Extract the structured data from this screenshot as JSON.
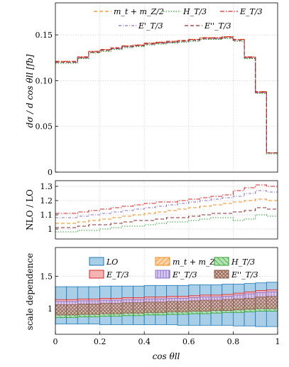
{
  "chart_data": [
    {
      "type": "line",
      "ylabel": "dσ / d cos θll [fb]",
      "ylim": [
        0,
        0.185
      ],
      "yticks": [
        "0",
        "0.05",
        "0.10",
        "0.15"
      ],
      "ytick_values": [
        0,
        0.05,
        0.1,
        0.15
      ],
      "grid": true,
      "legend_position": "top-right",
      "bin_edges": [
        0,
        0.05,
        0.1,
        0.15,
        0.2,
        0.25,
        0.3,
        0.35,
        0.4,
        0.45,
        0.5,
        0.55,
        0.6,
        0.65,
        0.7,
        0.75,
        0.8,
        0.85,
        0.9,
        0.95,
        1.0
      ],
      "series": [
        {
          "name": "m_t + m_Z/2",
          "color": "#ee8a1c",
          "dash": "5,3",
          "values": [
            0.121,
            0.121,
            0.126,
            0.132,
            0.134,
            0.136,
            0.138,
            0.139,
            0.141,
            0.142,
            0.143,
            0.144,
            0.145,
            0.147,
            0.147,
            0.148,
            0.145,
            0.126,
            0.088,
            0.021
          ]
        },
        {
          "name": "H_T/3",
          "color": "#2ca02c",
          "dash": "1.5,2",
          "values": [
            0.119,
            0.119,
            0.124,
            0.13,
            0.132,
            0.134,
            0.136,
            0.137,
            0.139,
            0.14,
            0.141,
            0.142,
            0.143,
            0.145,
            0.145,
            0.146,
            0.143,
            0.124,
            0.086,
            0.02
          ]
        },
        {
          "name": "E_T/3",
          "color": "#d62728",
          "dash": "6,2,1.5,2",
          "values": [
            0.121,
            0.121,
            0.126,
            0.132,
            0.134,
            0.136,
            0.138,
            0.139,
            0.141,
            0.142,
            0.143,
            0.144,
            0.145,
            0.147,
            0.147,
            0.148,
            0.145,
            0.126,
            0.088,
            0.021
          ]
        },
        {
          "name": "E'_T/3",
          "color": "#8a6fc9",
          "dash": "4,2,1,2",
          "values": [
            0.12,
            0.12,
            0.125,
            0.131,
            0.133,
            0.135,
            0.137,
            0.138,
            0.14,
            0.141,
            0.142,
            0.143,
            0.144,
            0.146,
            0.146,
            0.147,
            0.144,
            0.125,
            0.087,
            0.021
          ]
        },
        {
          "name": "E''_T/3",
          "color": "#8c2d2d",
          "dash": "5,3",
          "values": [
            0.12,
            0.12,
            0.125,
            0.131,
            0.133,
            0.135,
            0.137,
            0.138,
            0.14,
            0.141,
            0.142,
            0.143,
            0.144,
            0.146,
            0.146,
            0.147,
            0.144,
            0.125,
            0.087,
            0.021
          ]
        }
      ]
    },
    {
      "type": "line",
      "ylabel": "NLO / LO",
      "ylim": [
        0.93,
        1.34
      ],
      "yticks": [
        "1",
        "1.1",
        "1.2",
        "1.3"
      ],
      "ytick_values": [
        1,
        1.1,
        1.2,
        1.3
      ],
      "grid": true,
      "bin_edges": [
        0,
        0.05,
        0.1,
        0.15,
        0.2,
        0.25,
        0.3,
        0.35,
        0.4,
        0.45,
        0.5,
        0.55,
        0.6,
        0.65,
        0.7,
        0.75,
        0.8,
        0.85,
        0.9,
        0.95,
        1.0
      ],
      "series": [
        {
          "name": "m_t + m_Z/2",
          "color": "#ee8a1c",
          "dash": "5,3",
          "values": [
            1.04,
            1.04,
            1.05,
            1.06,
            1.07,
            1.08,
            1.09,
            1.1,
            1.11,
            1.12,
            1.13,
            1.14,
            1.15,
            1.16,
            1.17,
            1.18,
            1.19,
            1.2,
            1.21,
            1.2
          ]
        },
        {
          "name": "H_T/3",
          "color": "#2ca02c",
          "dash": "1.5,2",
          "values": [
            0.98,
            0.98,
            0.99,
            0.99,
            1.0,
            1.01,
            1.02,
            1.02,
            1.03,
            1.04,
            1.05,
            1.05,
            1.06,
            1.07,
            1.08,
            1.08,
            1.06,
            1.07,
            1.1,
            1.09
          ]
        },
        {
          "name": "E_T/3",
          "color": "#d62728",
          "dash": "6,2,1.5,2",
          "values": [
            1.11,
            1.11,
            1.12,
            1.13,
            1.14,
            1.15,
            1.16,
            1.17,
            1.18,
            1.19,
            1.19,
            1.2,
            1.21,
            1.22,
            1.23,
            1.24,
            1.27,
            1.29,
            1.31,
            1.3
          ]
        },
        {
          "name": "E'_T/3",
          "color": "#8a6fc9",
          "dash": "4,2,1,2",
          "values": [
            1.08,
            1.08,
            1.09,
            1.1,
            1.11,
            1.12,
            1.13,
            1.14,
            1.15,
            1.16,
            1.17,
            1.18,
            1.19,
            1.2,
            1.21,
            1.22,
            1.23,
            1.25,
            1.27,
            1.26
          ]
        },
        {
          "name": "E''_T/3",
          "color": "#8c2d2d",
          "dash": "5,3",
          "values": [
            1.01,
            1.01,
            1.02,
            1.03,
            1.03,
            1.04,
            1.05,
            1.06,
            1.06,
            1.07,
            1.08,
            1.08,
            1.09,
            1.1,
            1.11,
            1.11,
            1.12,
            1.13,
            1.15,
            1.14
          ]
        }
      ]
    },
    {
      "type": "bar",
      "ylabel": "scale dependence",
      "xlabel": "cos θll",
      "ylim": [
        0.6,
        1.95
      ],
      "yticks": [
        "1",
        "1.5"
      ],
      "ytick_values": [
        1,
        1.5
      ],
      "xticks": [
        "0",
        "0.2",
        "0.4",
        "0.6",
        "0.8",
        "1"
      ],
      "xtick_values": [
        0,
        0.2,
        0.4,
        0.6,
        0.8,
        1
      ],
      "grid": true,
      "legend_position": "top-right",
      "bin_edges": [
        0,
        0.05,
        0.1,
        0.15,
        0.2,
        0.25,
        0.3,
        0.35,
        0.4,
        0.45,
        0.5,
        0.55,
        0.6,
        0.65,
        0.7,
        0.75,
        0.8,
        0.85,
        0.9,
        0.95,
        1.0
      ],
      "bands": [
        {
          "name": "LO",
          "color": "#1f77b4",
          "fill": "#a9cfe8",
          "hatch": "none",
          "lo": [
            0.76,
            0.76,
            0.76,
            0.76,
            0.75,
            0.75,
            0.75,
            0.75,
            0.75,
            0.75,
            0.75,
            0.74,
            0.74,
            0.74,
            0.74,
            0.74,
            0.73,
            0.73,
            0.72,
            0.72
          ],
          "hi": [
            1.34,
            1.34,
            1.34,
            1.34,
            1.35,
            1.35,
            1.35,
            1.35,
            1.36,
            1.36,
            1.36,
            1.36,
            1.37,
            1.37,
            1.37,
            1.38,
            1.38,
            1.39,
            1.4,
            1.41
          ]
        },
        {
          "name": "m_t + m_Z/2",
          "color": "#ee8a1c",
          "fill": "#fbd3a6",
          "hatch": "diag",
          "lo": [
            0.92,
            0.92,
            0.93,
            0.93,
            0.94,
            0.94,
            0.95,
            0.95,
            0.96,
            0.96,
            0.97,
            0.97,
            0.98,
            0.98,
            0.99,
            0.99,
            1.0,
            1.01,
            1.02,
            1.02
          ],
          "hi": [
            1.08,
            1.08,
            1.09,
            1.09,
            1.1,
            1.1,
            1.11,
            1.12,
            1.12,
            1.13,
            1.13,
            1.14,
            1.15,
            1.15,
            1.16,
            1.17,
            1.18,
            1.19,
            1.21,
            1.22
          ]
        },
        {
          "name": "H_T/3",
          "color": "#2ca02c",
          "fill": "#b5e2b5",
          "hatch": "diag",
          "lo": [
            0.86,
            0.86,
            0.87,
            0.87,
            0.88,
            0.88,
            0.89,
            0.89,
            0.9,
            0.9,
            0.91,
            0.91,
            0.92,
            0.92,
            0.93,
            0.94,
            0.94,
            0.95,
            0.96,
            0.96
          ],
          "hi": [
            1.02,
            1.02,
            1.03,
            1.03,
            1.04,
            1.04,
            1.05,
            1.05,
            1.06,
            1.06,
            1.07,
            1.07,
            1.08,
            1.09,
            1.09,
            1.1,
            1.11,
            1.12,
            1.13,
            1.14
          ]
        },
        {
          "name": "E_T/3",
          "color": "#d62728",
          "fill": "#f4b4b4",
          "hatch": "none",
          "lo": [
            0.98,
            0.98,
            0.99,
            0.99,
            1.0,
            1.0,
            1.01,
            1.01,
            1.02,
            1.02,
            1.03,
            1.03,
            1.04,
            1.04,
            1.05,
            1.05,
            1.06,
            1.07,
            1.08,
            1.08
          ],
          "hi": [
            1.14,
            1.14,
            1.15,
            1.15,
            1.16,
            1.16,
            1.17,
            1.17,
            1.18,
            1.18,
            1.19,
            1.19,
            1.2,
            1.21,
            1.21,
            1.22,
            1.24,
            1.26,
            1.28,
            1.29
          ]
        },
        {
          "name": "E'_T/3",
          "color": "#8a6fc9",
          "fill": "#d9ccf0",
          "hatch": "vert",
          "lo": [
            0.96,
            0.96,
            0.96,
            0.97,
            0.97,
            0.98,
            0.98,
            0.99,
            0.99,
            1.0,
            1.0,
            1.01,
            1.01,
            1.02,
            1.02,
            1.03,
            1.04,
            1.05,
            1.06,
            1.06
          ],
          "hi": [
            1.11,
            1.11,
            1.12,
            1.12,
            1.13,
            1.13,
            1.14,
            1.14,
            1.15,
            1.15,
            1.16,
            1.16,
            1.17,
            1.18,
            1.18,
            1.19,
            1.21,
            1.23,
            1.25,
            1.26
          ]
        },
        {
          "name": "E''_T/3",
          "color": "#8c5a4a",
          "fill": "#d9bfb2",
          "hatch": "cross",
          "lo": [
            0.9,
            0.9,
            0.91,
            0.91,
            0.92,
            0.92,
            0.93,
            0.93,
            0.94,
            0.94,
            0.95,
            0.95,
            0.96,
            0.96,
            0.97,
            0.97,
            0.98,
            0.99,
            1.0,
            1.0
          ],
          "hi": [
            1.06,
            1.06,
            1.07,
            1.07,
            1.08,
            1.08,
            1.09,
            1.09,
            1.1,
            1.1,
            1.11,
            1.11,
            1.12,
            1.13,
            1.13,
            1.14,
            1.15,
            1.16,
            1.18,
            1.19
          ]
        }
      ]
    }
  ]
}
